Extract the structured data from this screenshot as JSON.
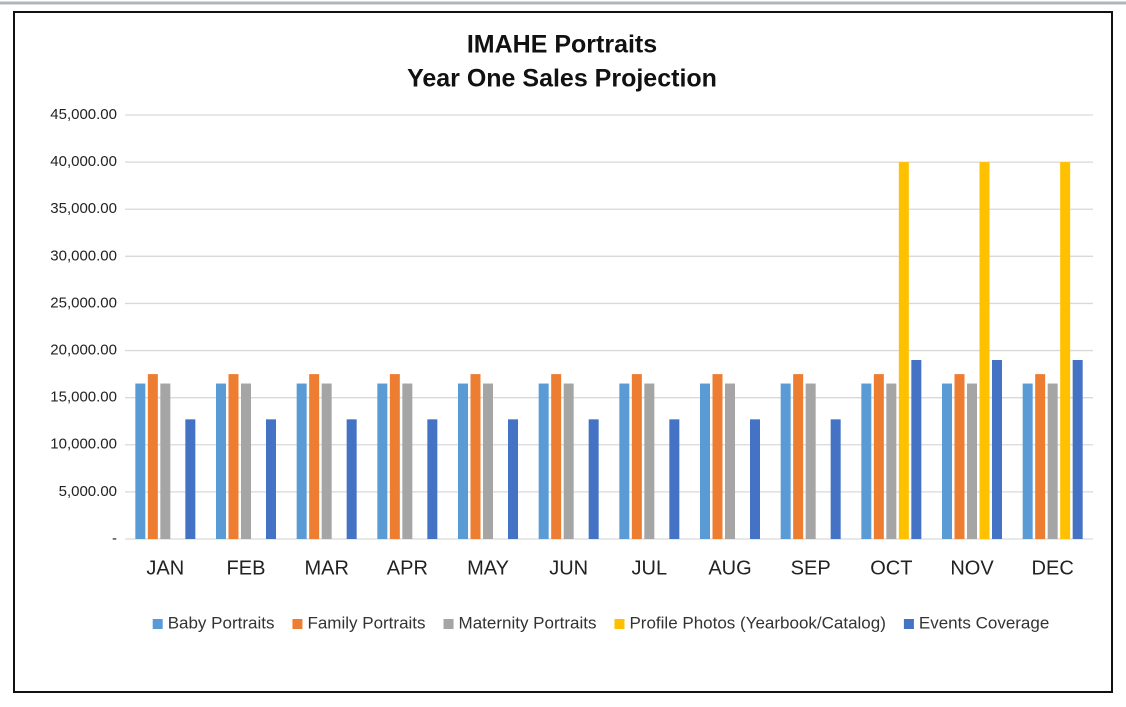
{
  "chart_data": {
    "type": "bar",
    "title": "IMAHE Portraits",
    "subtitle": "Year One Sales Projection",
    "categories": [
      "JAN",
      "FEB",
      "MAR",
      "APR",
      "MAY",
      "JUN",
      "JUL",
      "AUG",
      "SEP",
      "OCT",
      "NOV",
      "DEC"
    ],
    "series": [
      {
        "name": "Baby Portraits",
        "color": "#5b9bd5",
        "values": [
          16500,
          16500,
          16500,
          16500,
          16500,
          16500,
          16500,
          16500,
          16500,
          16500,
          16500,
          16500
        ]
      },
      {
        "name": "Family Portraits",
        "color": "#ed7d31",
        "values": [
          17500,
          17500,
          17500,
          17500,
          17500,
          17500,
          17500,
          17500,
          17500,
          17500,
          17500,
          17500
        ]
      },
      {
        "name": "Maternity Portraits",
        "color": "#a5a5a5",
        "values": [
          16500,
          16500,
          16500,
          16500,
          16500,
          16500,
          16500,
          16500,
          16500,
          16500,
          16500,
          16500
        ]
      },
      {
        "name": "Profile Photos (Yearbook/Catalog)",
        "color": "#ffc000",
        "values": [
          0,
          0,
          0,
          0,
          0,
          0,
          0,
          0,
          0,
          40000,
          40000,
          40000
        ]
      },
      {
        "name": "Events Coverage",
        "color": "#4472c4",
        "values": [
          12700,
          12700,
          12700,
          12700,
          12700,
          12700,
          12700,
          12700,
          12700,
          19000,
          19000,
          19000
        ]
      }
    ],
    "ylim": [
      0,
      45000
    ],
    "yticks": [
      {
        "value": 0,
        "label": "-"
      },
      {
        "value": 5000,
        "label": "5,000.00"
      },
      {
        "value": 10000,
        "label": "10,000.00"
      },
      {
        "value": 15000,
        "label": "15,000.00"
      },
      {
        "value": 20000,
        "label": "20,000.00"
      },
      {
        "value": 25000,
        "label": "25,000.00"
      },
      {
        "value": 30000,
        "label": "30,000.00"
      },
      {
        "value": 35000,
        "label": "35,000.00"
      },
      {
        "value": 40000,
        "label": "40,000.00"
      },
      {
        "value": 45000,
        "label": "45,000.00"
      }
    ],
    "grid": true,
    "legend": "bottom"
  }
}
